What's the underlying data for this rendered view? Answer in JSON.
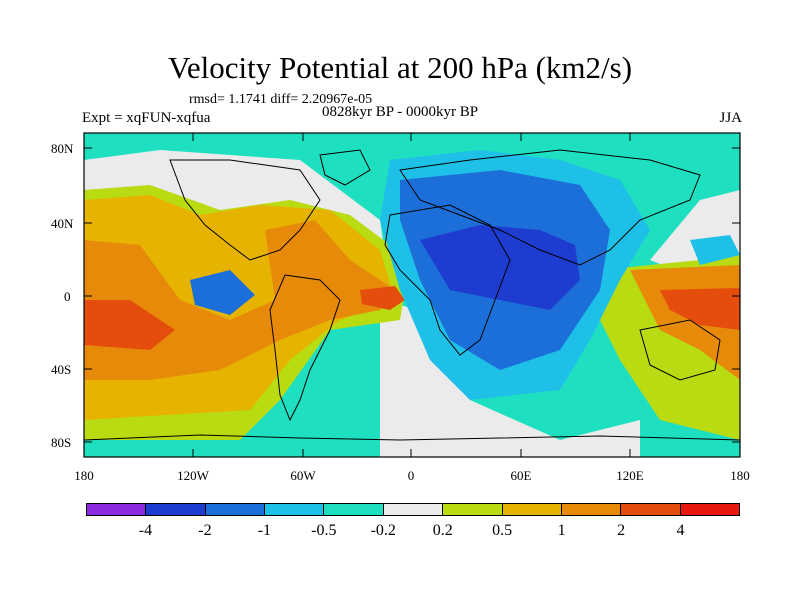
{
  "title": "Velocity Potential at 200 hPa (km2/s)",
  "stats": "rmsd= 1.1741 diff= 2.20967e-05",
  "experiment": "Expt = xqFUN-xqfua",
  "period": "0828kyr BP - 0000kyr BP",
  "season": "JJA",
  "lat_labels": [
    "80N",
    "40N",
    "0",
    "40S",
    "80S"
  ],
  "lon_labels": [
    "180",
    "120W",
    "60W",
    "0",
    "60E",
    "120E",
    "180"
  ],
  "colorbar": {
    "labels": [
      "-4",
      "-2",
      "-1",
      "-0.5",
      "-0.2",
      "0.2",
      "0.5",
      "1",
      "2",
      "4"
    ],
    "colors": [
      "#8a2be2",
      "#1e3ccf",
      "#1c6fd8",
      "#1ec0e8",
      "#1ee0c0",
      "#ebebeb",
      "#b9db12",
      "#e6b400",
      "#e78a0a",
      "#e44d0c",
      "#e8170d"
    ]
  },
  "map_colors": {
    "ocean_bg": "#1ee0c0",
    "neutral": "#ebebeb",
    "pos_low": "#b9db12",
    "pos_mid": "#e6b400",
    "pos_high": "#e78a0a",
    "pos_max": "#e44d0c",
    "neg_low": "#1ec0e8",
    "neg_mid": "#1c6fd8",
    "neg_high": "#1e3ccf"
  }
}
